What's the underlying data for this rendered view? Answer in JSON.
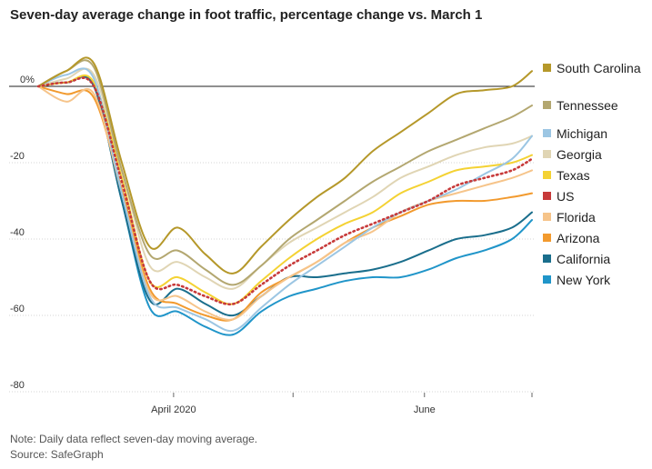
{
  "title": "Seven-day average change in foot traffic, percentage change vs. March 1",
  "note": "Note: Daily data reflect seven-day moving average.",
  "source": "Source: SafeGraph",
  "chart_data": {
    "type": "line",
    "xlabel": "",
    "ylabel": "",
    "x_ticks": [
      "April 2020",
      "June"
    ],
    "y_ticks": [
      "0%",
      "-20",
      "-40",
      "-60",
      "-80"
    ],
    "ylim": [
      -80,
      5
    ],
    "grid": true,
    "legend": "right",
    "x": [
      0,
      7,
      14,
      21,
      28,
      35,
      42,
      49,
      56,
      63,
      70,
      77,
      84,
      91,
      98,
      105,
      112,
      119,
      124
    ],
    "series": [
      {
        "name": "South Carolina",
        "color": "#b5982a",
        "style": "solid",
        "values": [
          0,
          4,
          6,
          -20,
          -42,
          -37,
          -44,
          -49,
          -42,
          -35,
          -29,
          -24,
          -17,
          -12,
          -7,
          -2,
          -1,
          0,
          4
        ]
      },
      {
        "name": "Tennessee",
        "color": "#b3a770",
        "style": "solid",
        "values": [
          0,
          4,
          5,
          -22,
          -44,
          -43,
          -48,
          -52,
          -47,
          -40,
          -35,
          -30,
          -25,
          -21,
          -17,
          -14,
          -11,
          -8,
          -5
        ]
      },
      {
        "name": "Michigan",
        "color": "#9cc6e3",
        "style": "solid",
        "values": [
          0,
          3,
          2,
          -28,
          -55,
          -58,
          -61,
          -64,
          -58,
          -52,
          -47,
          -42,
          -37,
          -33,
          -30,
          -27,
          -23,
          -19,
          -13
        ]
      },
      {
        "name": "Georgia",
        "color": "#e0d5b4",
        "style": "solid",
        "values": [
          0,
          2,
          3,
          -22,
          -47,
          -46,
          -50,
          -53,
          -47,
          -41,
          -37,
          -33,
          -29,
          -24,
          -21,
          -18,
          -16,
          -15,
          -13
        ]
      },
      {
        "name": "Texas",
        "color": "#f4d233",
        "style": "solid",
        "values": [
          0,
          1,
          1,
          -24,
          -51,
          -50,
          -54,
          -57,
          -51,
          -45,
          -40,
          -36,
          -33,
          -28,
          -25,
          -22,
          -21,
          -20,
          -18
        ]
      },
      {
        "name": "US",
        "color": "#c73a3a",
        "style": "dotted",
        "values": [
          0,
          1,
          0,
          -25,
          -51,
          -52,
          -55,
          -57,
          -52,
          -47,
          -43,
          -39,
          -36,
          -33,
          -30,
          -26,
          -24,
          -22,
          -19
        ]
      },
      {
        "name": "Florida",
        "color": "#f6c48a",
        "style": "solid",
        "values": [
          0,
          -4,
          -2,
          -28,
          -54,
          -55,
          -59,
          -61,
          -55,
          -50,
          -46,
          -41,
          -38,
          -33,
          -30,
          -28,
          -26,
          -24,
          -22
        ]
      },
      {
        "name": "Arizona",
        "color": "#f29a2e",
        "style": "solid",
        "values": [
          0,
          -2,
          -3,
          -27,
          -53,
          -57,
          -60,
          -61,
          -54,
          -50,
          -46,
          -41,
          -37,
          -34,
          -31,
          -30,
          -30,
          -29,
          -28
        ]
      },
      {
        "name": "California",
        "color": "#1a6e8c",
        "style": "solid",
        "values": [
          0,
          1,
          0,
          -30,
          -56,
          -53,
          -57,
          -60,
          -55,
          -50,
          -50,
          -49,
          -48,
          -46,
          -43,
          -40,
          -39,
          -37,
          -33
        ]
      },
      {
        "name": "New York",
        "color": "#2095c9",
        "style": "solid",
        "values": [
          0,
          1,
          0,
          -30,
          -58,
          -59,
          -63,
          -65,
          -59,
          -55,
          -53,
          -51,
          -50,
          -50,
          -48,
          -45,
          -43,
          -40,
          -35
        ]
      }
    ]
  }
}
